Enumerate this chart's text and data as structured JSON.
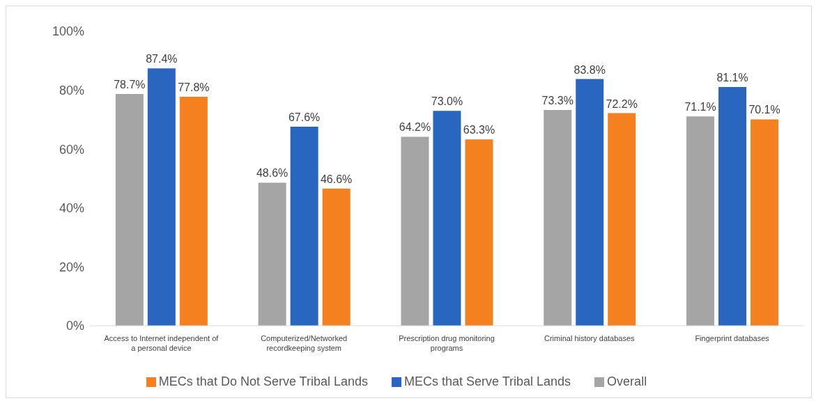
{
  "chart_data": {
    "type": "bar",
    "categories": [
      "Access to Internet independent of a personal device",
      "Computerized/Networked recordkeeping system",
      "Prescription drug monitoring programs",
      "Criminal history databases",
      "Fingerprint databases"
    ],
    "series": [
      {
        "name": "Overall",
        "color": "#a5a5a5",
        "values": [
          78.7,
          48.6,
          64.2,
          73.3,
          71.1
        ],
        "value_labels": [
          "78.7%",
          "48.6%",
          "64.2%",
          "73.3%",
          "71.1%"
        ]
      },
      {
        "name": "MECs that Serve Tribal Lands",
        "color": "#2866c0",
        "values": [
          87.4,
          67.6,
          73.0,
          83.8,
          81.1
        ],
        "value_labels": [
          "87.4%",
          "67.6%",
          "73.0%",
          "83.8%",
          "81.1%"
        ]
      },
      {
        "name": "MECs that Do Not Serve Tribal Lands",
        "color": "#f4801f",
        "values": [
          77.8,
          46.6,
          63.3,
          72.2,
          70.1
        ],
        "value_labels": [
          "77.8%",
          "46.6%",
          "63.3%",
          "72.2%",
          "70.1%"
        ]
      }
    ],
    "ylim": [
      0,
      100
    ],
    "yticks": [
      {
        "value": 0,
        "label": "0%"
      },
      {
        "value": 20,
        "label": "20%"
      },
      {
        "value": 40,
        "label": "40%"
      },
      {
        "value": 60,
        "label": "60%"
      },
      {
        "value": 80,
        "label": "80%"
      },
      {
        "value": 100,
        "label": "100%"
      }
    ],
    "grid": false,
    "legend": "bottom"
  }
}
